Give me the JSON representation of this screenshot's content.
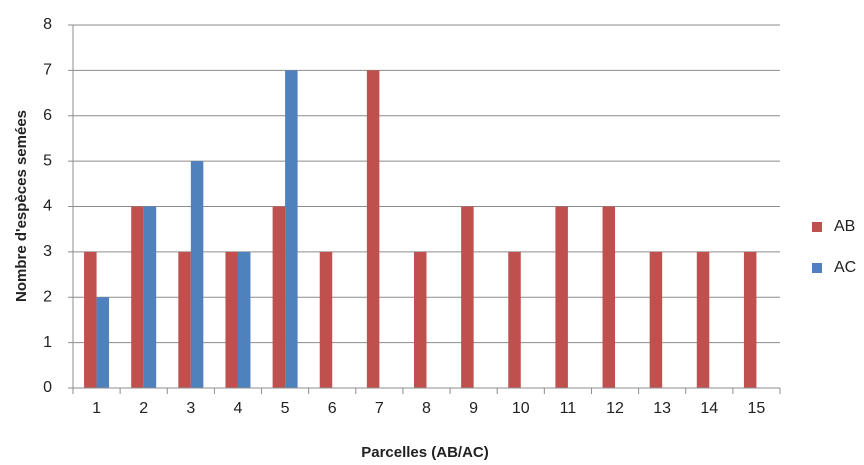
{
  "chart_data": {
    "type": "bar",
    "y_label": "Nombre d'espèces semées",
    "x_label": "Parcelles  (AB/AC)",
    "categories": [
      "1",
      "2",
      "3",
      "4",
      "5",
      "6",
      "7",
      "8",
      "9",
      "10",
      "11",
      "12",
      "13",
      "14",
      "15"
    ],
    "series": [
      {
        "name": "AB",
        "color": "#c0504d",
        "values": [
          3,
          4,
          3,
          3,
          4,
          3,
          7,
          3,
          4,
          3,
          4,
          4,
          3,
          3,
          3
        ]
      },
      {
        "name": "AC",
        "color": "#4f81bd",
        "values": [
          2,
          4,
          5,
          3,
          7,
          null,
          null,
          null,
          null,
          null,
          null,
          null,
          null,
          null,
          null
        ]
      }
    ],
    "ylim": [
      0,
      8
    ],
    "yticks": [
      0,
      1,
      2,
      3,
      4,
      5,
      6,
      7,
      8
    ],
    "grid": true,
    "legend": "right"
  }
}
